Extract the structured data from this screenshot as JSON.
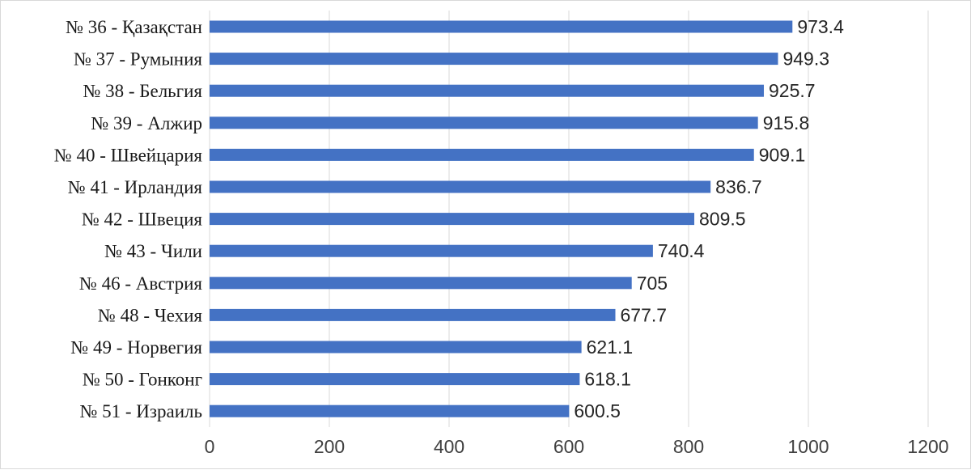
{
  "colors": {
    "bar": "#4472C4",
    "grid": "#d9d9d9",
    "border": "#d9d9d9",
    "background": "#ffffff"
  },
  "chart_data": {
    "type": "bar",
    "orientation": "horizontal",
    "title": "",
    "xlabel": "",
    "ylabel": "",
    "xlim": [
      0,
      1200
    ],
    "xticks": [
      0,
      200,
      400,
      600,
      800,
      1000,
      1200
    ],
    "xtick_labels": [
      "0",
      "200",
      "400",
      "600",
      "800",
      "1000",
      "1200"
    ],
    "grid": "vertical",
    "legend": "none",
    "categories": [
      "№ 36 - Қазақстан",
      "№ 37 - Румыния",
      "№ 38 - Бельгия",
      "№ 39 - Алжир",
      "№ 40 - Швейцария",
      "№ 41 - Ирландия",
      "№ 42 - Швеция",
      "№ 43 - Чили",
      "№ 46 - Австрия",
      "№ 48 - Чехия",
      "№ 49 - Норвегия",
      "№ 50 - Гонконг",
      "№ 51 - Израиль"
    ],
    "values": [
      973.4,
      949.3,
      925.7,
      915.8,
      909.1,
      836.7,
      809.5,
      740.4,
      705,
      677.7,
      621.1,
      618.1,
      600.5
    ],
    "value_labels": [
      "973.4",
      "949.3",
      "925.7",
      "915.8",
      "909.1",
      "836.7",
      "809.5",
      "740.4",
      "705",
      "677.7",
      "621.1",
      "618.1",
      "600.5"
    ]
  }
}
